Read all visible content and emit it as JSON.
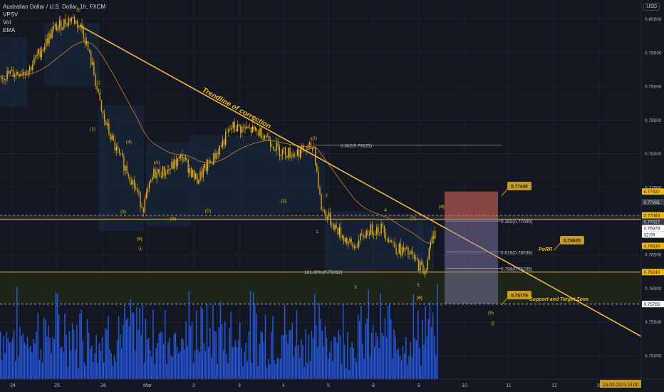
{
  "legend": {
    "symbol": "Australian Dollar / U.S. Dollar, 1h, FXCM",
    "line2": "VPSV",
    "line3": "Vol",
    "line4": "EMA"
  },
  "currency_button": "USD",
  "colors": {
    "background": "#131722",
    "up": "#f0b90b",
    "down": "#f0b90b",
    "volume": "#2962ff",
    "trendline": "#f4b936",
    "label_fill": "#c89a1e",
    "stop_zone": "#e36b5a",
    "target_zone": "#8e86b5"
  },
  "chart_data": {
    "type": "candlestick",
    "y_axis": {
      "range": [
        0.7465,
        0.8025
      ],
      "ticks": [
        "0.80000",
        "0.79500",
        "0.79000",
        "0.78500",
        "0.78000",
        "0.77500",
        "0.77000",
        "0.76500",
        "0.76000",
        "0.75500",
        "0.75000"
      ]
    },
    "x_axis": {
      "labels": [
        "24",
        "25",
        "26",
        "Mar",
        "2",
        "3",
        "4",
        "5",
        "8",
        "9",
        "10",
        "11",
        "12",
        "15",
        "16-03-2021",
        "14:00"
      ]
    },
    "price_badges": [
      {
        "value": "0.77437",
        "y": 0.77437,
        "color": "#f0b90b",
        "text_color": "#131722"
      },
      {
        "value": "0.77281",
        "y": 0.77281,
        "color": "#3a3e4a",
        "text_color": "#d1d4dc"
      },
      {
        "value": "0.77083",
        "y": 0.77083,
        "color": "#f0b90b",
        "text_color": "#131722"
      },
      {
        "value": "0.77027",
        "y": 0.77027,
        "color": "#3a3e4a",
        "text_color": "#d1d4dc"
      },
      {
        "value": "0.76978",
        "y": 0.76978,
        "color": "#ffffff",
        "text_color": "#131722"
      },
      {
        "value": "32:09",
        "y": 0.7688,
        "color": "#ffffff",
        "text_color": "#131722"
      },
      {
        "value": "0.76630",
        "y": 0.7663,
        "color": "#f0b90b",
        "text_color": "#131722"
      },
      {
        "value": "0.76240",
        "y": 0.7624,
        "color": "#f0b90b",
        "text_color": "#131722"
      },
      {
        "value": "0.75765",
        "y": 0.75765,
        "color": "#ffffff",
        "text_color": "#131722"
      }
    ],
    "horizontal_lines": [
      {
        "y": 0.77027,
        "color": "#f4b936",
        "style": "solid"
      },
      {
        "y": 0.7624,
        "color": "#f4b936",
        "style": "solid"
      },
      {
        "y": 0.77083,
        "color": "#8a8fa0",
        "style": "dashed"
      },
      {
        "y": 0.75765,
        "color": "#c7c9cf",
        "style": "dashed"
      }
    ],
    "fib_levels": [
      {
        "label": "0.382(0.78125)",
        "y": 0.78125
      },
      {
        "label": "0.382(0.77000)",
        "y": 0.77
      },
      {
        "label": "0.618(0.76538)",
        "y": 0.76538
      },
      {
        "label": "0.786(0.76295)",
        "y": 0.76295
      },
      {
        "label": "161.80%(0.76312)",
        "y": 0.76312
      }
    ],
    "callouts": [
      {
        "value": "0.77440",
        "y": 0.7744
      },
      {
        "value": "0.76620",
        "y": 0.7662
      },
      {
        "value": "0.75779",
        "y": 0.75779
      }
    ],
    "annotations": [
      {
        "text": "Trendline of correction",
        "kind": "title"
      },
      {
        "text": "PoRR",
        "kind": "note"
      },
      {
        "text": "Support and Target Zone",
        "kind": "note"
      }
    ],
    "wave_labels": [
      "Ⓑ",
      "(1)",
      "(2)",
      "(3)",
      "(4)",
      "(5)",
      "Ⓐ",
      "(A)",
      "(B)",
      "(C)",
      "(D)",
      "(E)",
      "(1)",
      "(2)",
      "(3)",
      "(4)",
      "(5)",
      "1",
      "2",
      "3",
      "4",
      "5",
      "Ⓑ",
      "(4)",
      "(3)",
      "(5)",
      "Ⓒ",
      "(1)",
      "(5)"
    ],
    "path": [
      [
        0,
        0.7915
      ],
      [
        40,
        0.7925
      ],
      [
        75,
        0.7985
      ],
      [
        100,
        0.8002
      ],
      [
        115,
        0.7985
      ],
      [
        130,
        0.7925
      ],
      [
        142,
        0.786
      ],
      [
        160,
        0.781
      ],
      [
        185,
        0.776
      ],
      [
        200,
        0.772
      ],
      [
        215,
        0.777
      ],
      [
        235,
        0.7775
      ],
      [
        255,
        0.7795
      ],
      [
        275,
        0.776
      ],
      [
        300,
        0.7795
      ],
      [
        325,
        0.784
      ],
      [
        350,
        0.7835
      ],
      [
        370,
        0.783
      ],
      [
        390,
        0.7805
      ],
      [
        410,
        0.78
      ],
      [
        440,
        0.781
      ],
      [
        450,
        0.772
      ],
      [
        470,
        0.769
      ],
      [
        495,
        0.766
      ],
      [
        515,
        0.7685
      ],
      [
        535,
        0.769
      ],
      [
        555,
        0.766
      ],
      [
        575,
        0.765
      ],
      [
        595,
        0.7625
      ],
      [
        605,
        0.767
      ],
      [
        612,
        0.7698
      ]
    ]
  }
}
